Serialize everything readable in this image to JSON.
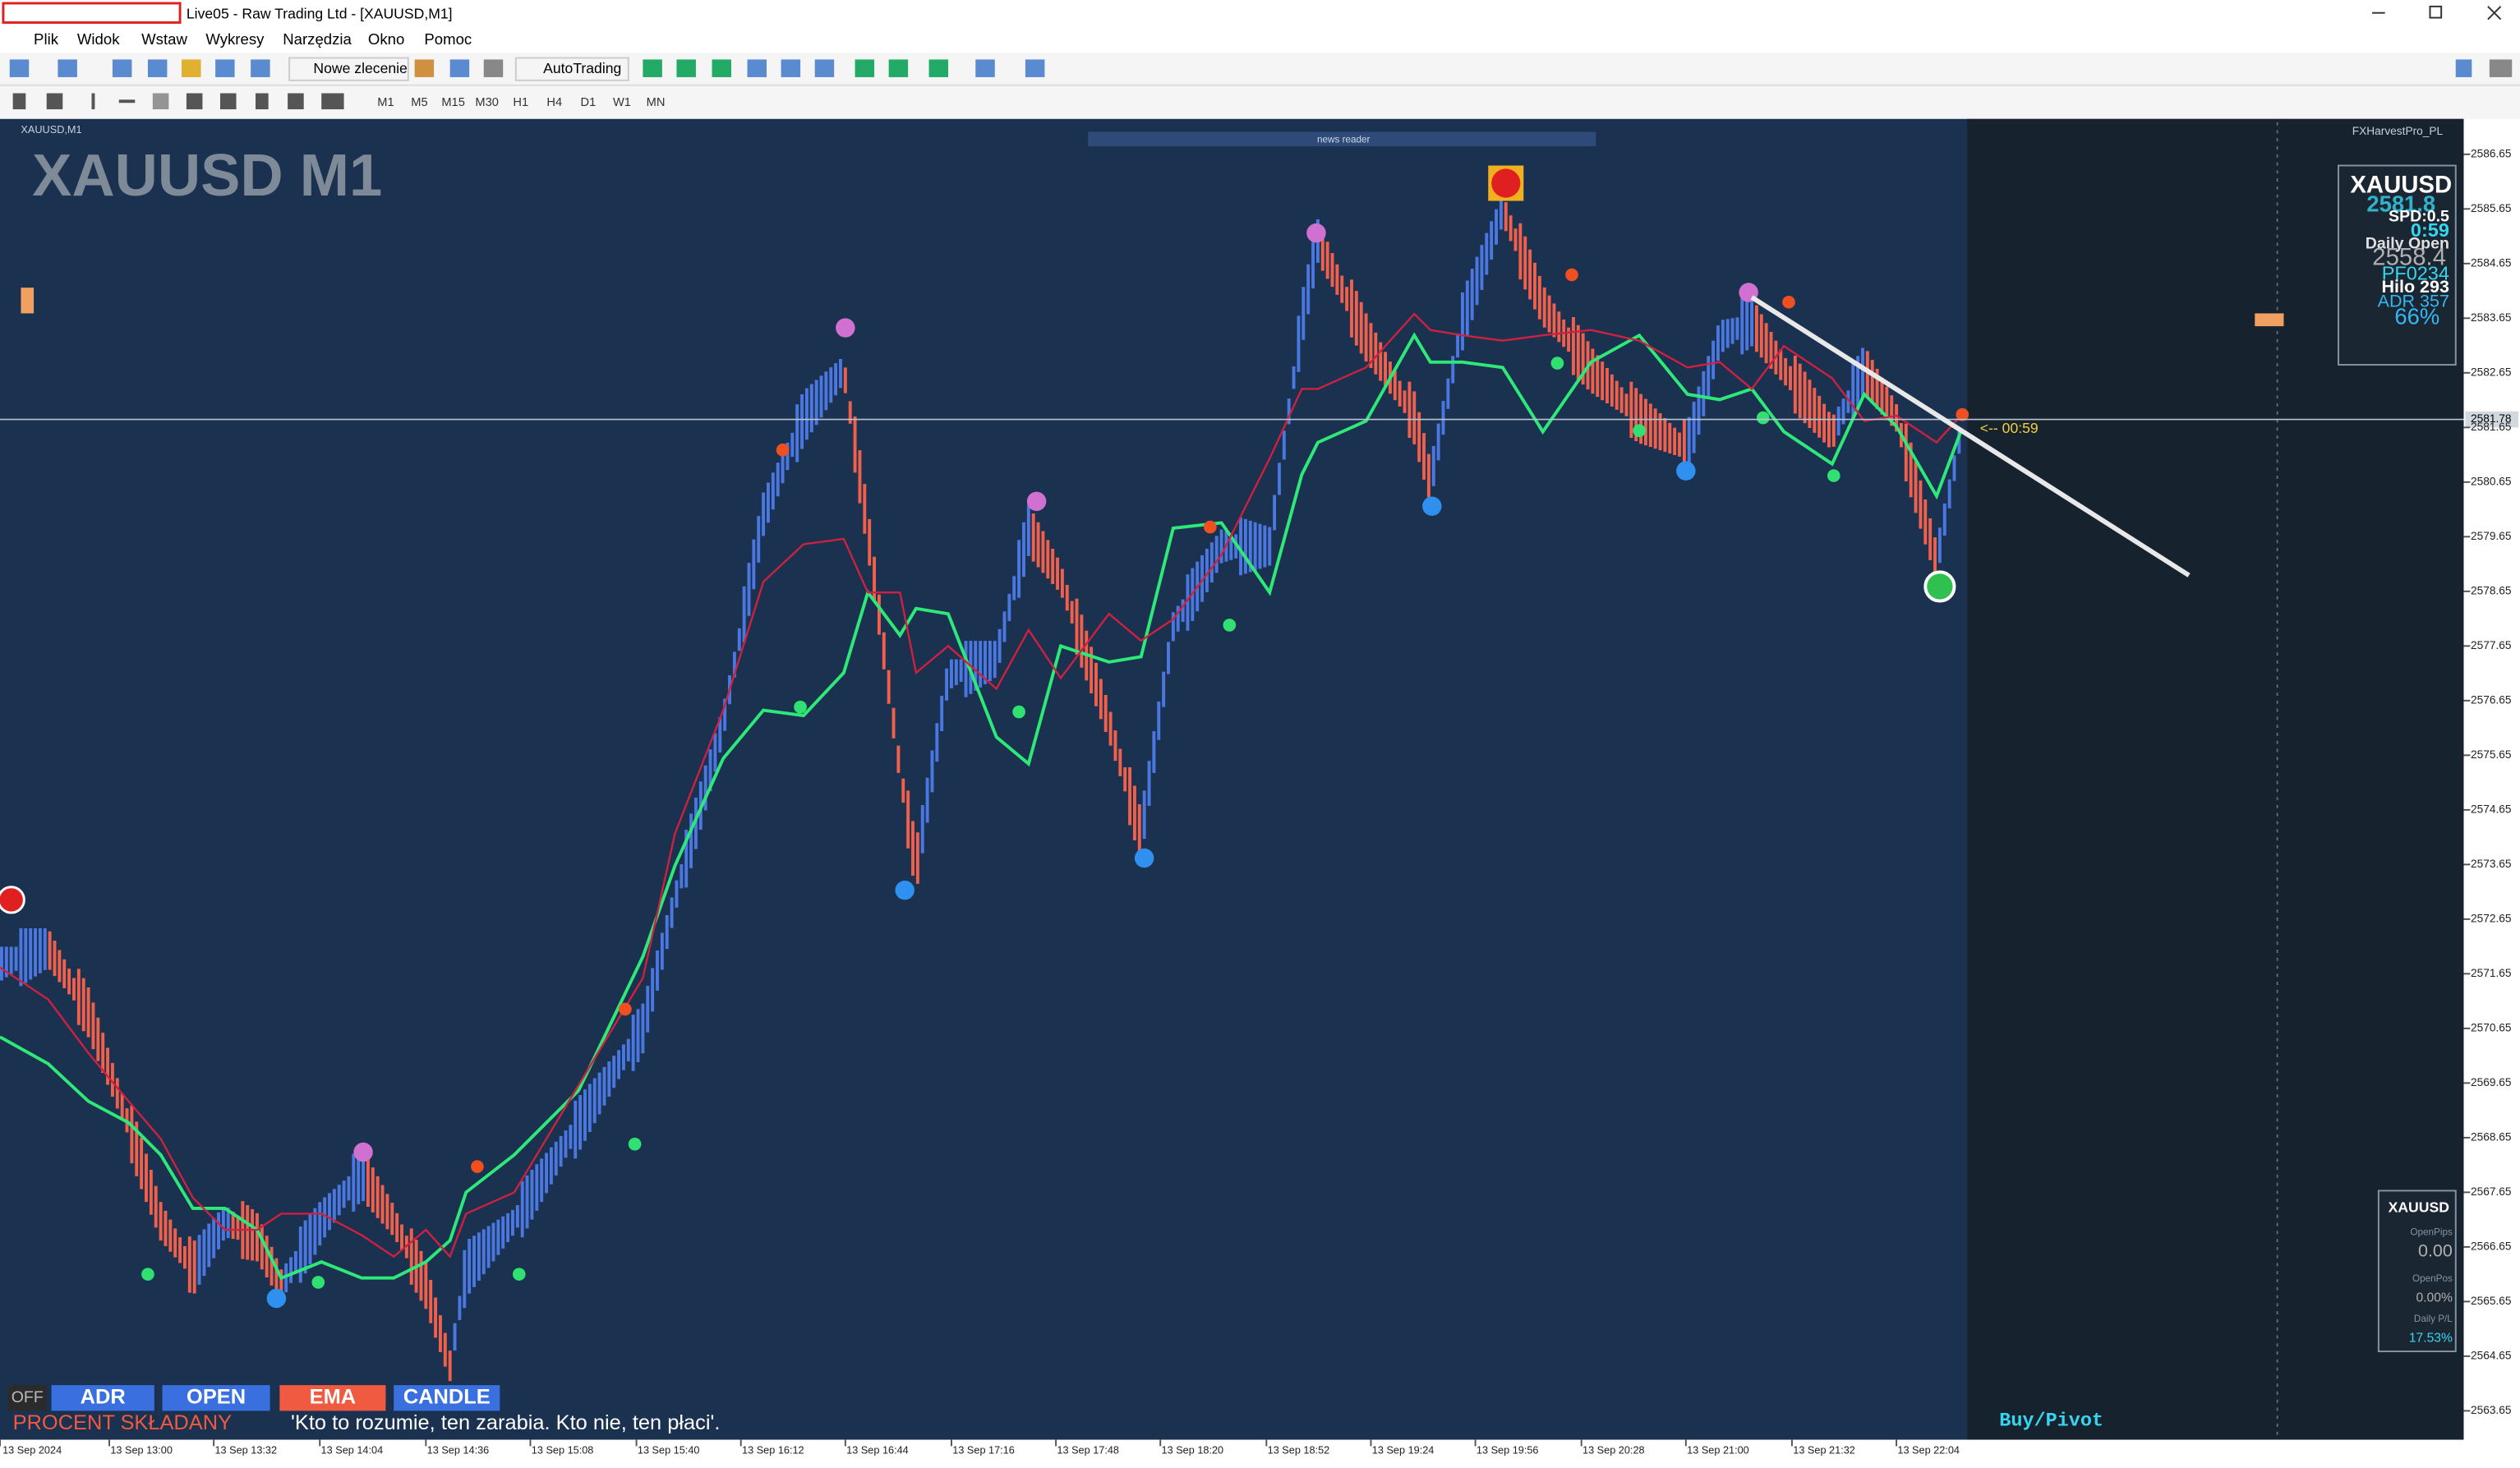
{
  "window": {
    "title": "Live05 - Raw Trading Ltd - [XAUUSD,M1]"
  },
  "menu": [
    "Plik",
    "Widok",
    "Wstaw",
    "Wykresy",
    "Narzędzia",
    "Okno",
    "Pomoc"
  ],
  "toolbar": {
    "new_order": "Nowe zlecenie",
    "autotrading": "AutoTrading",
    "timeframes": [
      "M1",
      "M5",
      "M15",
      "M30",
      "H1",
      "H4",
      "D1",
      "W1",
      "MN"
    ]
  },
  "chart": {
    "window_label": "XAUUSD,M1",
    "watermark": "XAUUSD M1",
    "news_reader": "news reader",
    "indicator": "FXHarvestPro_PL",
    "countdown": "<-- 00:59",
    "current_price": "2581.78",
    "price_axis": [
      "2586.65",
      "2585.65",
      "2584.65",
      "2583.65",
      "2582.65",
      "2581.65",
      "2580.65",
      "2579.65",
      "2578.65",
      "2577.65",
      "2576.65",
      "2575.65",
      "2574.65",
      "2573.65",
      "2572.65",
      "2571.65",
      "2570.65",
      "2569.65",
      "2568.65",
      "2567.65",
      "2566.65",
      "2565.65",
      "2564.65",
      "2563.65"
    ],
    "time_axis": [
      "13 Sep 2024",
      "13 Sep 13:00",
      "13 Sep 13:32",
      "13 Sep 14:04",
      "13 Sep 14:36",
      "13 Sep 15:08",
      "13 Sep 15:40",
      "13 Sep 16:12",
      "13 Sep 16:44",
      "13 Sep 17:16",
      "13 Sep 17:48",
      "13 Sep 18:20",
      "13 Sep 18:52",
      "13 Sep 19:24",
      "13 Sep 19:56",
      "13 Sep 20:28",
      "13 Sep 21:00",
      "13 Sep 21:32",
      "13 Sep 22:04"
    ]
  },
  "info_panel": {
    "symbol": "XAUUSD",
    "price": "2581.8",
    "spread": "SPD:0.5",
    "timer": "0:59",
    "daily_open_label": "Daily Open",
    "daily_open": "2558.4",
    "pf": "PF0234",
    "hilo": "Hilo 293",
    "adr": "ADR 357",
    "percent": "66%"
  },
  "account_panel": {
    "symbol": "XAUUSD",
    "open_pips_label": "OpenPips",
    "open_pips": "0.00",
    "open_pos_label": "OpenPos",
    "open_pos": "0.00%",
    "daily_pl_label": "Daily P/L",
    "daily_pl": "17.53%"
  },
  "buttons": [
    "OFF",
    "ADR",
    "OPEN",
    "EMA",
    "CANDLE"
  ],
  "footer": {
    "label": "PROCENT SKŁADANY",
    "quote": "'Kto to rozumie, ten zarabia. Kto nie, ten płaci'.",
    "signal": "Buy/Pivot"
  }
}
